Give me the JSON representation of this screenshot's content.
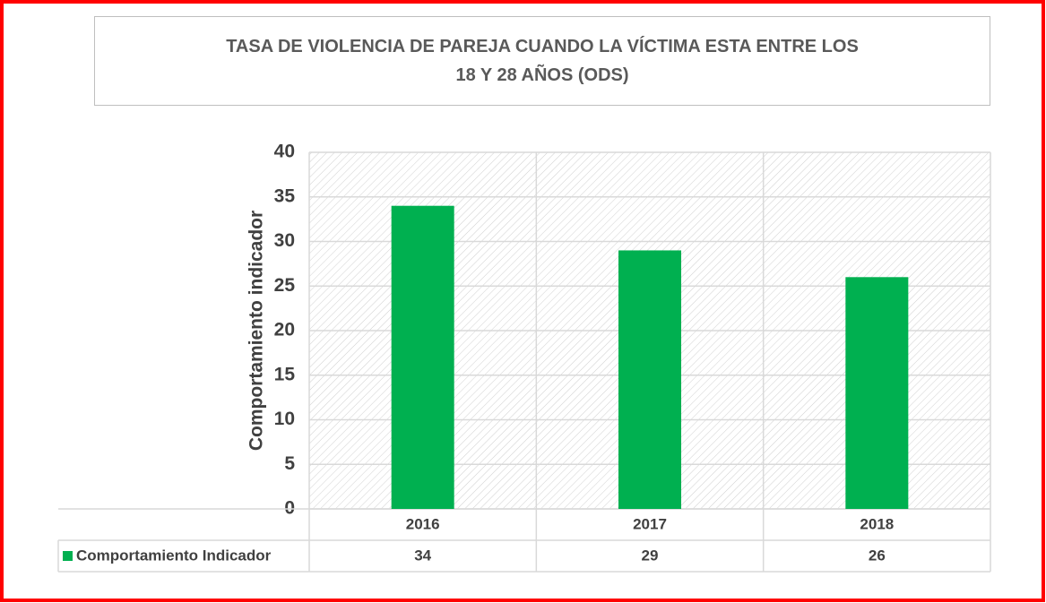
{
  "chart_data": {
    "type": "bar",
    "title": "TASA DE VIOLENCIA DE PAREJA CUANDO LA VÍCTIMA ESTA ENTRE LOS 18 Y 28 AÑOS (ODS)",
    "y_label": "Comportamiento indicador",
    "categories": [
      "2016",
      "2017",
      "2018"
    ],
    "series": [
      {
        "name": "Comportamiento Indicador",
        "color": "#00b050",
        "values": [
          34,
          29,
          26
        ]
      }
    ],
    "ylim": [
      0,
      40
    ],
    "yticks": [
      0,
      5,
      10,
      15,
      20,
      25,
      30,
      35,
      40
    ],
    "grid": true
  }
}
